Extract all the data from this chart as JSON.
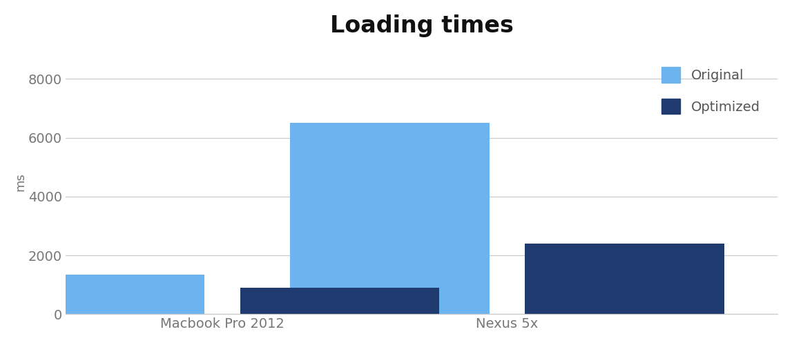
{
  "title": "Loading times",
  "ylabel": "ms",
  "categories": [
    "Macbook Pro 2012",
    "Nexus 5x"
  ],
  "series": {
    "Original": [
      1350,
      6500
    ],
    "Optimized": [
      900,
      2400
    ]
  },
  "colors": {
    "Original": "#6cb4f0",
    "Optimized": "#1e3a6e"
  },
  "ylim": [
    0,
    9000
  ],
  "yticks": [
    0,
    2000,
    4000,
    6000,
    8000
  ],
  "background_color": "#ffffff",
  "bar_width": 0.28,
  "title_fontsize": 24,
  "title_fontweight": "bold",
  "ylabel_fontsize": 13,
  "tick_fontsize": 14,
  "xtick_fontsize": 14,
  "legend_fontsize": 14,
  "grid_color": "#cccccc",
  "legend_labels": [
    "Original",
    "Optimized"
  ],
  "bar_gap": 0.05,
  "group_positions": [
    0.22,
    0.62
  ]
}
